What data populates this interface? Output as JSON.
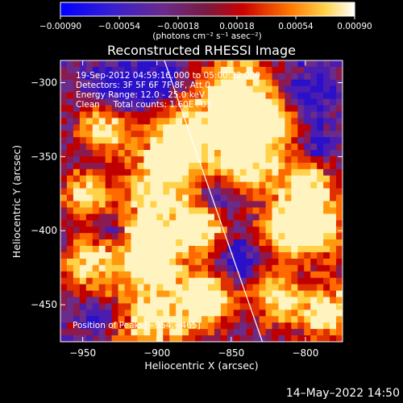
{
  "chart_data": {
    "type": "heatmap",
    "title": "Reconstructed RHESSI Image",
    "xlabel": "Heliocentric X (arcsec)",
    "ylabel": "Heliocentric Y (arcsec)",
    "xlim": [
      -965,
      -775
    ],
    "ylim": [
      -475,
      -285
    ],
    "xticks": [
      -950,
      -900,
      -850,
      -800
    ],
    "yticks": [
      -450,
      -400,
      -350,
      -300
    ],
    "xtick_labels": [
      "−950",
      "−900",
      "−850",
      "−800"
    ],
    "ytick_labels": [
      "−450",
      "−400",
      "−350",
      "−300"
    ],
    "colorbar": {
      "range": [
        -0.0009,
        0.0009
      ],
      "tick_labels": [
        "−0.00090",
        "−0.00054",
        "−0.00018",
        "0.00018",
        "0.00054",
        "0.00090"
      ],
      "units": "(photons cm⁻² s⁻¹ asec⁻²)",
      "colormap": [
        "#0000ff",
        "#5a1aa8",
        "#6a2b8a",
        "#cc0000",
        "#ff7700",
        "#ffffff"
      ]
    },
    "annotations": [
      "19-Sep-2012 04:59:16.000 to 05:00:32.000",
      "Detectors: 3F 5F 6F 7F 8F, Att 0",
      "Energy Range: 12.0 - 25.0 keV",
      "Clean     Total counts: 1.60E+03"
    ],
    "peak_label": "Position of Peak: [−954,−465]",
    "limb_line": [
      [
        -895,
        -285
      ],
      [
        -829,
        -475
      ]
    ],
    "image_rows": [
      "bbbbbbbbbbbbbbbbbbbbbbbbbbbbbbbbbbbbbbbbbbbbbbbbbb",
      "bbbbbbbbbbbbbbbbbbbbbbbbbbbbbbbbbbbbbbbbbbbbbbbbbb",
      "bbbbbbbbbbbbbbbbbbbbbbbbbbbbbbbbbbbbbbbbbbbbbbbbbb",
      "bbbbbbbbbbbbbbbbbbbbbbbbbbbbbbbbbbbbbbbbbbbbbbbbbb",
      "bbbbbbbbbbbbbbbbbbbbbbbbbbbbbbbbbbbbbbbbbbbbbbbbbb",
      "bbbbbbbbbbbbbbbbbbbbbbbbbbbbbbbbbbbbbbbbbbbbbbbbbb",
      "bbbbbbbbbbbbbbbbbbbbbbbbbbbbbbbbbbbbbbbbbbbbbbbbbb",
      "bbbbbbbbbbbbbbbbbbbbbbbbbbbbbbbbbbbbbbbbbbbbbbbbbb",
      "bbbbbbbbbbbbbbbbbbbbbbbbbbbbbbbbbbbbbbbbbbbbbbbbbb",
      "bbbbbbbbbbbbbbbbbbbbbbbbbbbbbbbbbbbbbbbbbbbbbbbbbb",
      "bbbbbbbbbbbbbbbbbbbbbbbbbbbbbbbbbbbbbbbbbbbbbbbbbb",
      "bbbbbbbbbbbbbbbbbbbbbbbbbbbbbbbbbbbbbbbbbbbbbbbbbb",
      "bbbbbbbbbbbbbbbbbbbbbbbbbbbbbbbbbbbbbbbbbbbbbbbbbb",
      "bbbbbbbbbbbbbbbbbbbbbbbbbbbbbbbbbbbbbbbbbbbbbbbbbb",
      "bbbbbbbbbbbbbbbbbbbbbbbbbbbbbbbbbbbbbbbbbbbbbbbbbb",
      "bbbbbbbbbbbbbbbbbbbbbbbbbbbbbbbbbbbbbbbbbbbbbbbbbb",
      "bbbbbbbbbbbbbbbbbbbbbbbbbbbbbbbbbbbbbbbbbbbbbbbbbb",
      "bbbbbbbbbbbbbbbbbbbbbbbbbbbbbbbbbbbbbbbbbbbbbbbbbb",
      "bbbbbbbbbbbbbbbbbbbbbbbbbbbbbbbbbbbbbbbbbbbbbbbbbb",
      "bbbbbbbbbbbbbbbbbbbbbbbbbbbbbbbbbbbbbbbbbbbbbbbbbb",
      "bbbbbbbbbbbbbbbbbbbbbbbbbbbbbbbbbbbbbbbbbbbbbbbbbb",
      "bbbbbbbbbbbbbbbbbbbbbbbbbbbbbbbbbbbbbbbbbbbbbbbbbb",
      "bbbbbbbbbbbbbbbbbbbbbbbbbbbbbbbbbbbbbbbbbbbbbbbbbb",
      "bbbbbbbbbbbbbbbbbbbbbbbbbbbbbbbbbbbbbbbbbbbbbbbbbb",
      "bbbbbbbbbbbbbbbbbbbbbbbbbbbbbbbbbbbbbbbbbbbbbbbbbb",
      "bbbbbbbbbbbbbbbbbbbbbbbbbbbbbbbbbbbbbbbbbbbbbbbbbb",
      "bbbbbbbbbbbbbbbbbbbbbbbbbbbbbbbbbbbbbbbbbbbbbbbbbb",
      "bbbbbbbbbbbbbbbbbbbbbbbbbbbbbbbbbbbbbbbbbbbbbbbbbb",
      "bbbbbbbbbbbbbbbbbbbbbbbbbbbbbbbbbbbbbbbbbbbbbbbbbb",
      "bbbbbbbbbbbbbbbbbbbbbbbbbbbbbbbbbbbbbbbbbbbbbbbbbb",
      "bbbbbbbbbbbbbbbbbbbbbbbbbbbbbbbbbbbbbbbbbbbbbbbbbb",
      "bbbbbbbbbbbbbbbbbbbbbbbbbbbbbbbbbbbbbbbbbbbbbbbbbb",
      "bbbbbbbbbbbbbbbbbbbbbbbbbbbbbbbbbbbbbbbbbbbbbbbbbb",
      "bbbbbbbbbbbbbbbbbbbbbbbbbbbbbbbbbbbbbbbbbbbbbbbbbb",
      "bbbbbbbbbbbbbbbbbbbbbbbbbbbbbbbbbbbbbbbbbbbbbbbbbb",
      "bbbbbbbbbbbbbbbbbbbbbbbbbbbbbbbbbbbbbbbbbbbbbbbbbb",
      "bbbbbbbbbbbbbbbbbbbbbbbbbbbbbbbbbbbbbbbbbbbbbbbbbb",
      "bbbbbbbbbbbbbbbbbbbbbbbbbbbbbbbbbbbbbbbbbbbbbbbbbb",
      "bbbbbbbbbbbbbbbbbbbbbbbbbbbbbbbbbbbbbbbbbbbbbbbbbb",
      "bbbbbbbbbbbbbbbbbbbbbbbbbbbbbbbbbbbbbbbbbbbbbbbbbb",
      "bbbbbbbbbbbbbbbbbbbbbbbbbbbbbbbbbbbbbbbbbbbbbbbbbb",
      "bbbbbbbbbbbbbbbbbbbbbbbbbbbbbbbbbbbbbbbbbbbbbbbbbb",
      "bbbbbbbbbbbbbbbbbbbbbbbbbbbbbbbbbbbbbbbbbbbbbbbbbb",
      "bbbbbbbbbbbbbbbbbbbbbbbbbbbbbbbbbbbbbbbbbbbbbbbbbb",
      "bbbbbbbbbbbbbbbbbbbbbbbbbbbbbbbbbbbbbbbbbbbbbbbbbb",
      "bbbbbbbbbbbbbbbbbbbbbbbbbbbbbbbbbbbbbbbbbbbbbbbbbb",
      "bbbbbbbbbbbbbbbbbbbbbbbbbbbbbbbbbbbbbbbbbbbbbbbbbb",
      "bbbbbbbbbbbbbbbbbbbbbbbbbbbbbbbbbbbbbbbbbbbbbbbbbb",
      "bbbbbbbbbbbbbbbbbbbbbbbbbbbbbbbbbbbbbbbbbbbbbbbbbb",
      "bbbbbbbbbbbbbbbbbbbbbbbbbbbbbbbbbbbbbbbbbbbbbbbbbb"
    ]
  },
  "timestamp": "14–May–2022 14:50"
}
